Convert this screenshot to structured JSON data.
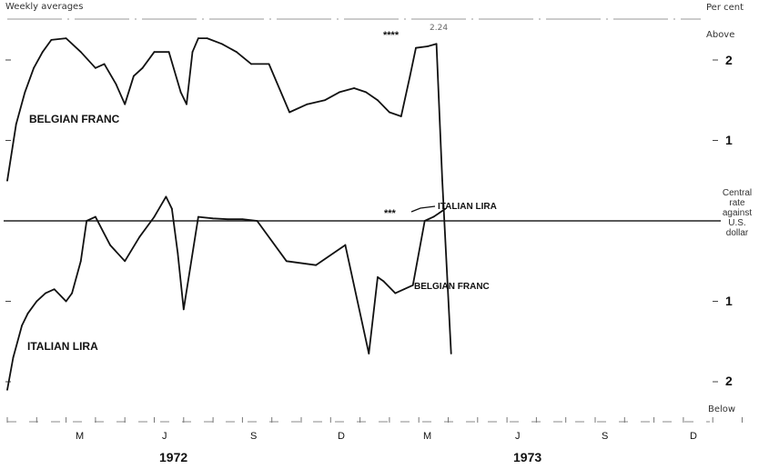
{
  "chart_data": {
    "type": "line",
    "title": "Weekly averages",
    "ylabel": "Per cent",
    "ylim": [
      -2.3,
      2.3
    ],
    "y_ticks": [
      {
        "value": 2,
        "label": "2"
      },
      {
        "value": 1,
        "label": "1"
      },
      {
        "value": -1,
        "label": "1"
      },
      {
        "value": -2,
        "label": "2"
      }
    ],
    "upper_label": "Above",
    "lower_label": "Below",
    "reference_label": [
      "Central",
      "rate",
      "against",
      "U.S.",
      "dollar"
    ],
    "x_month_labels": [
      "M",
      "J",
      "S",
      "D",
      "M",
      "J",
      "S",
      "D"
    ],
    "x_month_positions": [
      3,
      6,
      9,
      12,
      15,
      18,
      21,
      24
    ],
    "years": [
      {
        "label": "1972",
        "center": 6.5
      },
      {
        "label": "1973",
        "center": 19.5
      }
    ],
    "xlim": [
      0,
      26
    ],
    "series": [
      {
        "name": "BELGIAN FRANC",
        "x": [
          0.0,
          0.3,
          0.6,
          0.9,
          1.2,
          1.5,
          2.0,
          2.5,
          3.0,
          3.3,
          3.7,
          4.0,
          4.3,
          4.6,
          5.0,
          5.5,
          5.9,
          6.1,
          6.3,
          6.5,
          6.8,
          7.3,
          7.8,
          8.3,
          8.9,
          9.6,
          10.2,
          10.8,
          11.3,
          11.8,
          12.2,
          12.6,
          13.0,
          13.4,
          13.7,
          13.9,
          14.3,
          14.6,
          14.8,
          15.1
        ],
        "y": [
          0.5,
          1.2,
          1.6,
          1.9,
          2.1,
          2.25,
          2.27,
          2.1,
          1.9,
          1.95,
          1.7,
          1.45,
          1.8,
          1.9,
          2.1,
          2.1,
          1.6,
          1.45,
          2.1,
          2.27,
          2.27,
          2.2,
          2.1,
          1.95,
          1.95,
          1.35,
          1.45,
          1.5,
          1.6,
          1.65,
          1.6,
          1.5,
          1.35,
          1.3,
          1.8,
          2.15,
          2.17,
          2.2,
          0.5,
          -1.65
        ]
      },
      {
        "name": "ITALIAN LIRA",
        "x": [
          0.0,
          0.2,
          0.5,
          0.7,
          1.0,
          1.3,
          1.6,
          2.0,
          2.2,
          2.5,
          2.7,
          3.0,
          3.5,
          4.0,
          4.5,
          5.0,
          5.4,
          5.6,
          5.8,
          6.0,
          6.5,
          7.0,
          7.5,
          8.0,
          8.5,
          9.5,
          10.5,
          11.5,
          12.3,
          12.6,
          12.8,
          13.2,
          13.5,
          13.8,
          14.2,
          14.5,
          14.7,
          14.9
        ],
        "y": [
          -2.1,
          -1.7,
          -1.3,
          -1.15,
          -1.0,
          -0.9,
          -0.85,
          -1.0,
          -0.9,
          -0.5,
          0.0,
          0.05,
          -0.3,
          -0.5,
          -0.2,
          0.05,
          0.3,
          0.15,
          -0.4,
          -1.1,
          0.05,
          0.03,
          0.02,
          0.02,
          0.0,
          -0.5,
          -0.55,
          -0.3,
          -1.65,
          -0.7,
          -0.75,
          -0.9,
          -0.85,
          -0.8,
          0.0,
          0.05,
          0.1,
          0.15
        ]
      }
    ],
    "annotations": [
      {
        "text": "BELGIAN FRANC",
        "series": "BELGIAN FRANC"
      },
      {
        "text": "ITALIAN LIRA",
        "series": "ITALIAN LIRA"
      },
      {
        "text": "ITALIAN LIRA",
        "series": "ITALIAN LIRA"
      },
      {
        "text": "BELGIAN FRANC",
        "series": "BELGIAN FRANC"
      },
      {
        "text": "****"
      },
      {
        "text": "***"
      },
      {
        "text": "2.24"
      }
    ]
  }
}
